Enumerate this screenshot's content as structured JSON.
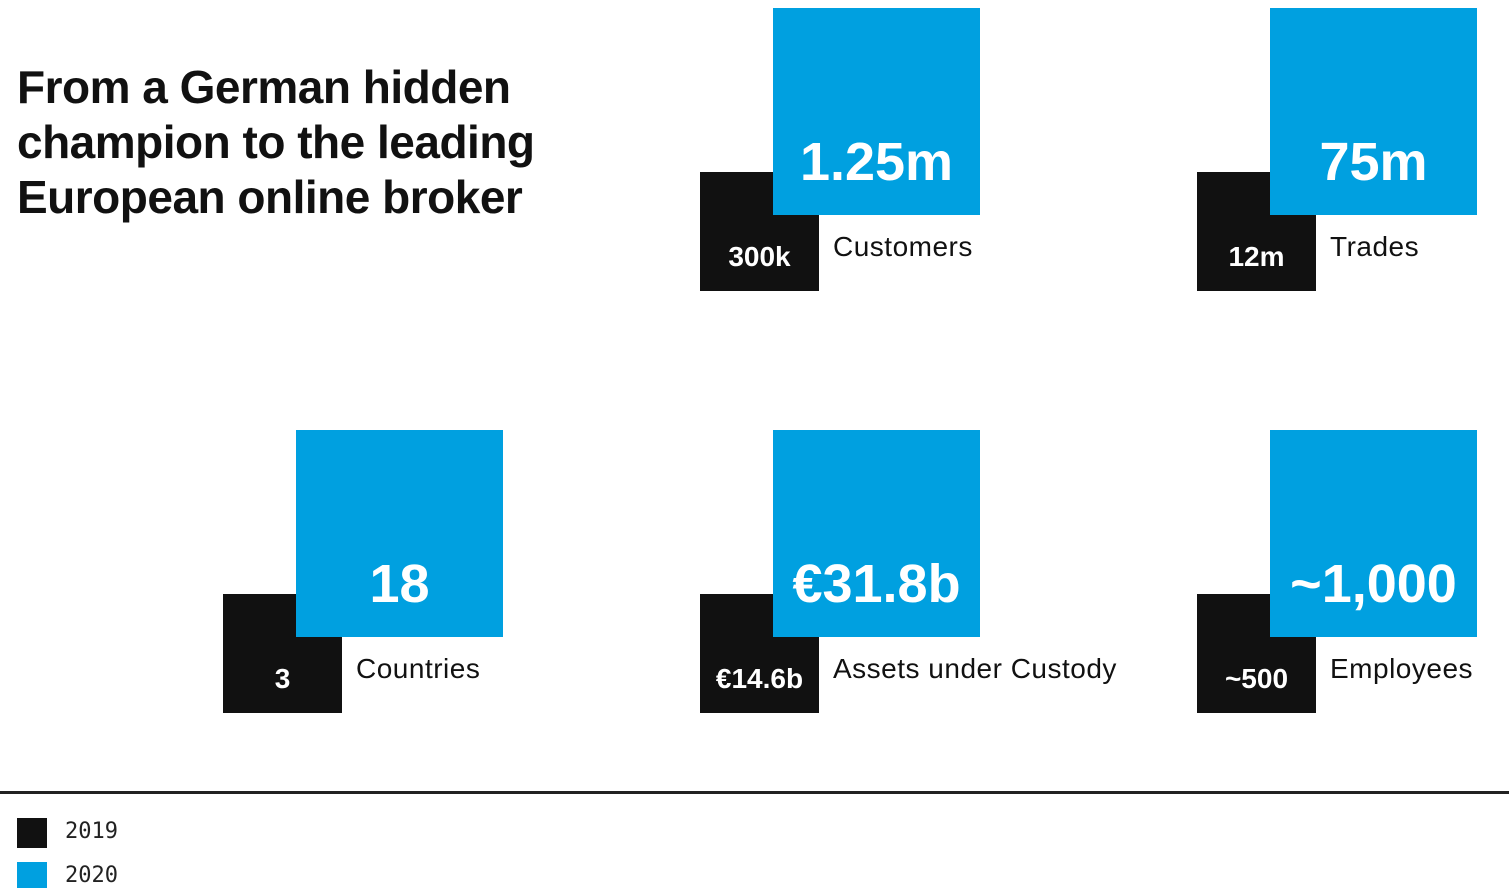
{
  "title": "From a German hidden champion to the leading European online broker",
  "metrics": [
    {
      "label": "Customers",
      "value_2019": "300k",
      "value_2020": "1.25m"
    },
    {
      "label": "Trades",
      "value_2019": "12m",
      "value_2020": "75m"
    },
    {
      "label": "Countries",
      "value_2019": "3",
      "value_2020": "18"
    },
    {
      "label": "Assets under Custody",
      "value_2019": "€14.6b",
      "value_2020": "€31.8b"
    },
    {
      "label": "Employees",
      "value_2019": "~500",
      "value_2020": "~1,000"
    }
  ],
  "legend": [
    {
      "label": "2019",
      "color": "#111111"
    },
    {
      "label": "2020",
      "color": "#00a0e0"
    }
  ]
}
